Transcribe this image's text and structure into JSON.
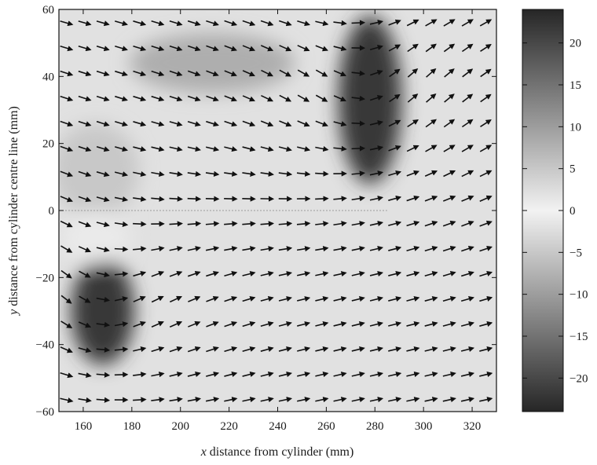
{
  "chart_data": {
    "type": "heatmap",
    "subtype": "vector-field-over-vorticity-contour",
    "title": "",
    "xlabel": "x distance from cylinder (mm)",
    "xlabel_var": "x",
    "xlabel_rest": " distance from cylinder (mm)",
    "ylabel": "y distance from cylinder centre line (mm)",
    "ylabel_var": "y",
    "ylabel_rest": " distance from cylinder centre line (mm)",
    "xlim": [
      150,
      330
    ],
    "ylim": [
      -60,
      60
    ],
    "xticks": [
      160,
      180,
      200,
      220,
      240,
      260,
      280,
      300,
      320
    ],
    "yticks": [
      -60,
      -40,
      -20,
      0,
      20,
      40,
      60
    ],
    "ytick_labels": [
      "−60",
      "−40",
      "−20",
      "0",
      "20",
      "40",
      "60"
    ],
    "centre_line_y": 0,
    "colorbar": {
      "range": [
        -24,
        24
      ],
      "ticks": [
        20,
        15,
        10,
        5,
        0,
        -5,
        -10,
        -15,
        -20
      ],
      "tick_labels": [
        "20",
        "15",
        "10",
        "5",
        "0",
        "−5",
        "−10",
        "−15",
        "−20"
      ],
      "colors": {
        "low": "#262626",
        "mid": "#f2f2f2",
        "high": "#262626"
      }
    },
    "background_value": 2,
    "regions": [
      {
        "cx": 278,
        "cy": 33,
        "rx": 13,
        "ry": 25,
        "value": -22
      },
      {
        "cx": 168,
        "cy": -30,
        "rx": 13,
        "ry": 16,
        "value": -22
      },
      {
        "cx": 213,
        "cy": 44,
        "rx": 34,
        "ry": 9,
        "value": 8
      },
      {
        "cx": 165,
        "cy": 12,
        "rx": 18,
        "ry": 14,
        "value": -5
      },
      {
        "cx": 165,
        "cy": -8,
        "rx": 14,
        "ry": 8,
        "value": 1
      }
    ],
    "vector_field": {
      "x_start": 150,
      "x_step": 7.5,
      "x_count": 24,
      "y_start": -60,
      "y_step": 7.5,
      "y_count": 17,
      "arrow_length_mm": 5.2,
      "description": "mean flow to the right, upward swirl near upper-right vortex, downward near lower-left vortex"
    }
  }
}
